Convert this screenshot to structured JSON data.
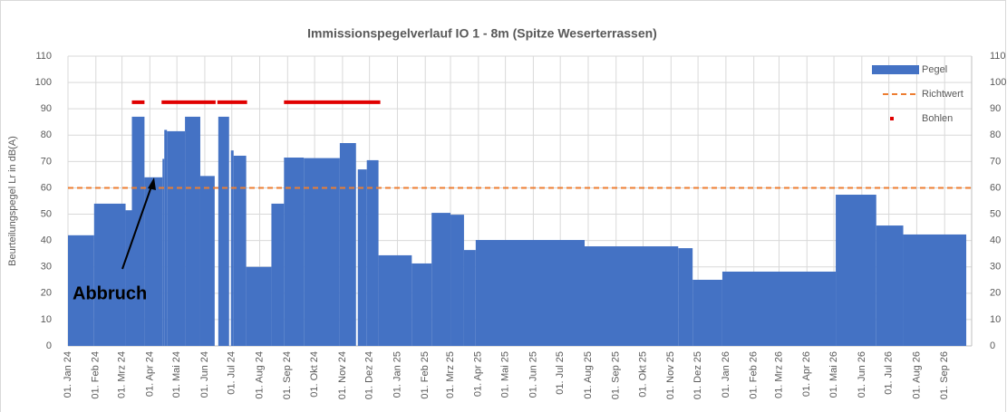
{
  "chart_data": {
    "type": "bar",
    "title": "Immissionspegelverlauf  IO 1 - 8m (Spitze Weserterrassen)",
    "y_label": "Beurteilungspegel Lr in dB(A)",
    "annotation": "Abbruch",
    "ylim": [
      0,
      110
    ],
    "yticks": [
      0,
      10,
      20,
      30,
      40,
      50,
      60,
      70,
      80,
      90,
      100,
      110
    ],
    "xlim": [
      "2024-01-01",
      "2026-10-01"
    ],
    "xticks": [
      {
        "value": "2024-01-01",
        "label": "01. Jan 24"
      },
      {
        "value": "2024-02-01",
        "label": "01. Feb 24"
      },
      {
        "value": "2024-03-01",
        "label": "01. Mrz 24"
      },
      {
        "value": "2024-04-01",
        "label": "01. Apr 24"
      },
      {
        "value": "2024-05-01",
        "label": "01. Mai 24"
      },
      {
        "value": "2024-06-01",
        "label": "01. Jun 24"
      },
      {
        "value": "2024-07-01",
        "label": "01. Jul 24"
      },
      {
        "value": "2024-08-01",
        "label": "01. Aug 24"
      },
      {
        "value": "2024-09-01",
        "label": "01. Sep 24"
      },
      {
        "value": "2024-10-01",
        "label": "01. Okt 24"
      },
      {
        "value": "2024-11-01",
        "label": "01. Nov 24"
      },
      {
        "value": "2024-12-01",
        "label": "01. Dez 24"
      },
      {
        "value": "2025-01-01",
        "label": "01. Jan 25"
      },
      {
        "value": "2025-02-01",
        "label": "01. Feb 25"
      },
      {
        "value": "2025-03-01",
        "label": "01. Mrz 25"
      },
      {
        "value": "2025-04-01",
        "label": "01. Apr 25"
      },
      {
        "value": "2025-05-01",
        "label": "01. Mai 25"
      },
      {
        "value": "2025-06-01",
        "label": "01. Jun 25"
      },
      {
        "value": "2025-07-01",
        "label": "01. Jul 25"
      },
      {
        "value": "2025-08-01",
        "label": "01. Aug 25"
      },
      {
        "value": "2025-09-01",
        "label": "01. Sep 25"
      },
      {
        "value": "2025-10-01",
        "label": "01. Okt 25"
      },
      {
        "value": "2025-11-01",
        "label": "01. Nov 25"
      },
      {
        "value": "2025-12-01",
        "label": "01. Dez 25"
      },
      {
        "value": "2026-01-01",
        "label": "01. Jan 26"
      },
      {
        "value": "2026-02-01",
        "label": "01. Feb 26"
      },
      {
        "value": "2026-03-01",
        "label": "01. Mrz 26"
      },
      {
        "value": "2026-04-01",
        "label": "01. Apr 26"
      },
      {
        "value": "2026-05-01",
        "label": "01. Mai 26"
      },
      {
        "value": "2026-06-01",
        "label": "01. Jun 26"
      },
      {
        "value": "2026-07-01",
        "label": "01. Jul 26"
      },
      {
        "value": "2026-08-01",
        "label": "01. Aug 26"
      },
      {
        "value": "2026-09-01",
        "label": "01. Sep 26"
      }
    ],
    "grid": true,
    "legend": "top-right",
    "bars": {
      "name": "Pegel",
      "color": "#4472c4",
      "bins": [
        "2024-01-01",
        "2024-01-30",
        "2024-03-05",
        "2024-03-12",
        "2024-03-26",
        "2024-04-15",
        "2024-04-17",
        "2024-04-20",
        "2024-05-10",
        "2024-05-27",
        "2024-06-12",
        "2024-06-16",
        "2024-06-28",
        "2024-06-30",
        "2024-07-03",
        "2024-07-17",
        "2024-08-14",
        "2024-08-28",
        "2024-09-19",
        "2024-10-29",
        "2024-11-16",
        "2024-11-18",
        "2024-11-28",
        "2024-12-11",
        "2025-01-17",
        "2025-02-08",
        "2025-03-01",
        "2025-03-16",
        "2025-03-29",
        "2025-07-28",
        "2025-11-09",
        "2025-11-25",
        "2025-12-28",
        "2026-05-03",
        "2026-06-17",
        "2026-07-17",
        "2026-09-25"
      ],
      "values": [
        42,
        54,
        51.5,
        87,
        64,
        71,
        82,
        81.5,
        87,
        64.5,
        null,
        87,
        null,
        74.2,
        72.2,
        30,
        54,
        71.5,
        71.3,
        77,
        null,
        67,
        70.5,
        34.4,
        31.3,
        50.5,
        49.8,
        36.4,
        40.2,
        37.8,
        37.1,
        25.1,
        28.2,
        57.4,
        45.7,
        42.3
      ]
    },
    "reference": {
      "name": "Richtwert",
      "color": "#ed7d31",
      "value": 60
    },
    "segments": {
      "name": "Bohlen",
      "color": "#e00000",
      "items": [
        {
          "x": [
            "2024-03-12",
            "2024-03-26"
          ],
          "value": 92.5
        },
        {
          "x": [
            "2024-04-14",
            "2024-06-13"
          ],
          "value": 92.5
        },
        {
          "x": [
            "2024-06-15",
            "2024-07-18"
          ],
          "value": 92.5
        },
        {
          "x": [
            "2024-08-28",
            "2024-12-13"
          ],
          "value": 92.5
        }
      ]
    }
  }
}
